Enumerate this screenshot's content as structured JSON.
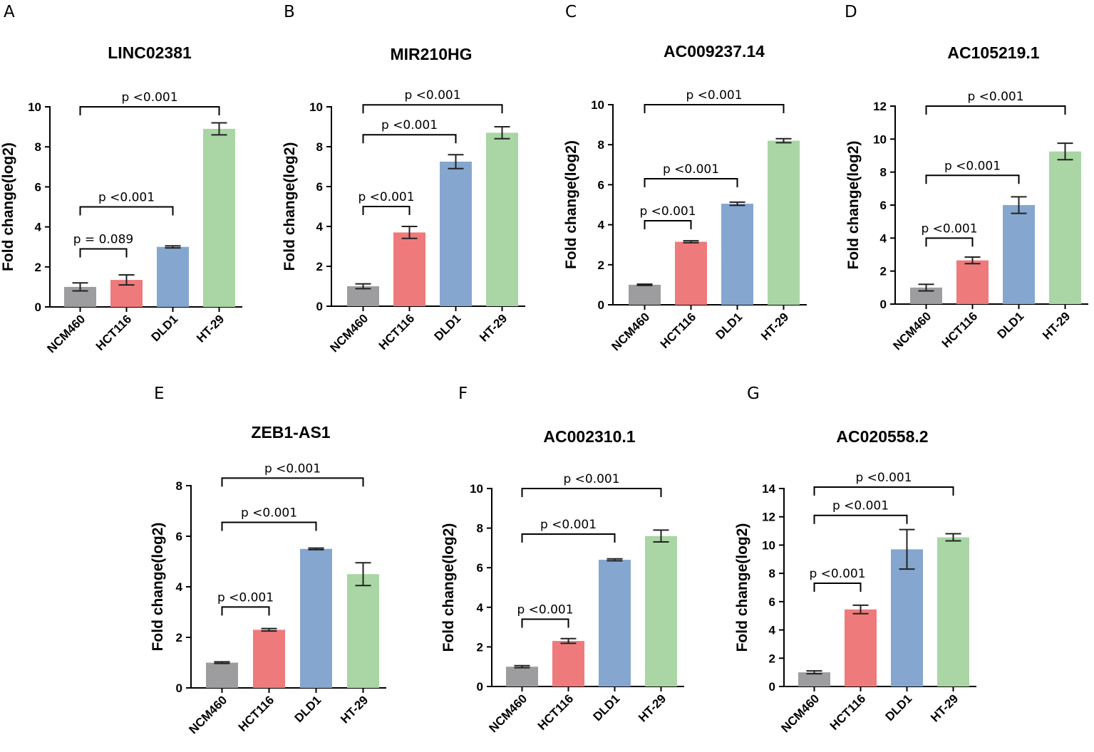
{
  "colors": {
    "NCM460": "#9d9d9f",
    "HCT116": "#ef7a7b",
    "DLD1": "#85a6cf",
    "HT-29": "#a9d6a4"
  },
  "chart_data": [
    {
      "panel": "A",
      "type": "bar",
      "title": "LINC02381",
      "ylabel": "Fold change(log2)",
      "categories": [
        "NCM460",
        "HCT116",
        "DLD1",
        "HT-29"
      ],
      "values": [
        1.0,
        1.35,
        3.0,
        8.9
      ],
      "errors": [
        0.2,
        0.25,
        0.05,
        0.3
      ],
      "ylim": [
        0,
        10
      ],
      "yticks": [
        "0",
        "2",
        "4",
        "6",
        "8",
        "10"
      ],
      "comparisons": [
        {
          "from": 0,
          "to": 1,
          "level": 2.9,
          "label": "p = 0.089"
        },
        {
          "from": 0,
          "to": 2,
          "level": 5.0,
          "label": "p <0.001"
        },
        {
          "from": 0,
          "to": 3,
          "level": 10.0,
          "label": "p <0.001"
        }
      ]
    },
    {
      "panel": "B",
      "type": "bar",
      "title": "MIR210HG",
      "ylabel": "Fold change(log2)",
      "categories": [
        "NCM460",
        "HCT116",
        "DLD1",
        "HT-29"
      ],
      "values": [
        1.0,
        3.7,
        7.25,
        8.7
      ],
      "errors": [
        0.12,
        0.3,
        0.35,
        0.3
      ],
      "ylim": [
        0,
        10
      ],
      "yticks": [
        "0",
        "2",
        "4",
        "6",
        "8",
        "10"
      ],
      "comparisons": [
        {
          "from": 0,
          "to": 1,
          "level": 5.0,
          "label": "p <0.001"
        },
        {
          "from": 0,
          "to": 2,
          "level": 8.6,
          "label": "p <0.001"
        },
        {
          "from": 0,
          "to": 3,
          "level": 10.1,
          "label": "p <0.001"
        }
      ]
    },
    {
      "panel": "C",
      "type": "bar",
      "title": "AC009237.14",
      "ylabel": "Fold change(log2)",
      "categories": [
        "NCM460",
        "HCT116",
        "DLD1",
        "HT-29"
      ],
      "values": [
        1.0,
        3.15,
        5.05,
        8.2
      ],
      "errors": [
        0.03,
        0.05,
        0.08,
        0.1
      ],
      "ylim": [
        0,
        10
      ],
      "yticks": [
        "0",
        "2",
        "4",
        "6",
        "8",
        "10"
      ],
      "comparisons": [
        {
          "from": 0,
          "to": 1,
          "level": 4.2,
          "label": "p <0.001"
        },
        {
          "from": 0,
          "to": 2,
          "level": 6.3,
          "label": "p <0.001"
        },
        {
          "from": 0,
          "to": 3,
          "level": 10.0,
          "label": "p <0.001"
        }
      ]
    },
    {
      "panel": "D",
      "type": "bar",
      "title": "AC105219.1",
      "ylabel": "Fold change(log2)",
      "categories": [
        "NCM460",
        "HCT116",
        "DLD1",
        "HT-29"
      ],
      "values": [
        1.0,
        2.65,
        6.0,
        9.25
      ],
      "errors": [
        0.2,
        0.2,
        0.5,
        0.5
      ],
      "ylim": [
        0,
        12
      ],
      "yticks": [
        "0",
        "2",
        "4",
        "6",
        "8",
        "10",
        "12"
      ],
      "comparisons": [
        {
          "from": 0,
          "to": 1,
          "level": 4.0,
          "label": "p <0.001"
        },
        {
          "from": 0,
          "to": 2,
          "level": 7.8,
          "label": "p <0.001"
        },
        {
          "from": 0,
          "to": 3,
          "level": 12.0,
          "label": "p <0.001"
        }
      ]
    },
    {
      "panel": "E",
      "type": "bar",
      "title": "ZEB1-AS1",
      "ylabel": "Fold change(log2)",
      "categories": [
        "NCM460",
        "HCT116",
        "DLD1",
        "HT-29"
      ],
      "values": [
        1.0,
        2.3,
        5.5,
        4.5
      ],
      "errors": [
        0.03,
        0.05,
        0.03,
        0.45
      ],
      "ylim": [
        0,
        8
      ],
      "yticks": [
        "0",
        "2",
        "4",
        "6",
        "8"
      ],
      "comparisons": [
        {
          "from": 0,
          "to": 1,
          "level": 3.2,
          "label": "p <0.001"
        },
        {
          "from": 0,
          "to": 2,
          "level": 6.55,
          "label": "p <0.001"
        },
        {
          "from": 0,
          "to": 3,
          "level": 8.3,
          "label": "p <0.001"
        }
      ]
    },
    {
      "panel": "F",
      "type": "bar",
      "title": "AC002310.1",
      "ylabel": "Fold change(log2)",
      "categories": [
        "NCM460",
        "HCT116",
        "DLD1",
        "HT-29"
      ],
      "values": [
        1.0,
        2.3,
        6.4,
        7.6
      ],
      "errors": [
        0.05,
        0.12,
        0.05,
        0.3
      ],
      "ylim": [
        0,
        10
      ],
      "yticks": [
        "0",
        "2",
        "4",
        "6",
        "8",
        "10"
      ],
      "comparisons": [
        {
          "from": 0,
          "to": 1,
          "level": 3.4,
          "label": "p <0.001"
        },
        {
          "from": 0,
          "to": 2,
          "level": 7.7,
          "label": "p <0.001"
        },
        {
          "from": 0,
          "to": 3,
          "level": 10.0,
          "label": "p <0.001"
        }
      ]
    },
    {
      "panel": "G",
      "type": "bar",
      "title": "AC020558.2",
      "ylabel": "Fold change(log2)",
      "categories": [
        "NCM460",
        "HCT116",
        "DLD1",
        "HT-29"
      ],
      "values": [
        1.0,
        5.45,
        9.7,
        10.55
      ],
      "errors": [
        0.1,
        0.3,
        1.4,
        0.25
      ],
      "ylim": [
        0,
        14
      ],
      "yticks": [
        "0",
        "2",
        "4",
        "6",
        "8",
        "10",
        "12",
        "14"
      ],
      "comparisons": [
        {
          "from": 0,
          "to": 1,
          "level": 7.3,
          "label": "p <0.001"
        },
        {
          "from": 0,
          "to": 2,
          "level": 12.1,
          "label": "p <0.001"
        },
        {
          "from": 0,
          "to": 3,
          "level": 14.1,
          "label": "p <0.001"
        }
      ]
    }
  ]
}
